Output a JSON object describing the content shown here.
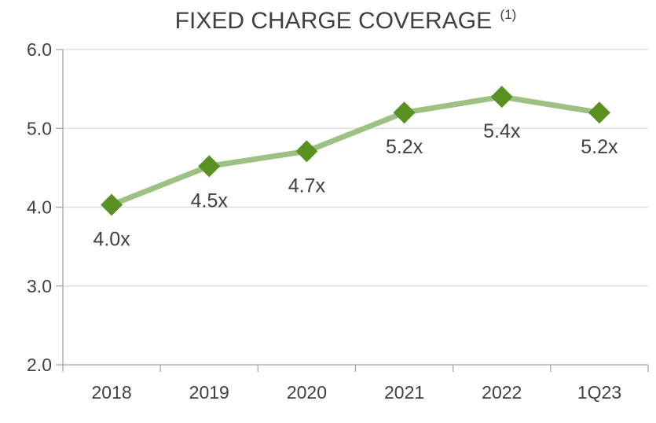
{
  "chart_data": {
    "type": "line",
    "title": "FIXED CHARGE COVERAGE",
    "title_superscript": "(1)",
    "categories": [
      "2018",
      "2019",
      "2020",
      "2021",
      "2022",
      "1Q23"
    ],
    "series": [
      {
        "name": "Fixed Charge Coverage",
        "values": [
          4.03,
          4.52,
          4.71,
          5.2,
          5.4,
          5.2
        ],
        "data_labels": [
          "4.0x",
          "4.5x",
          "4.7x",
          "5.2x",
          "5.4x",
          "5.2x"
        ],
        "line_color": "#9dc183",
        "marker_color": "#5a9123",
        "marker": "diamond"
      }
    ],
    "y_ticks": [
      "2.0",
      "3.0",
      "4.0",
      "5.0",
      "6.0"
    ],
    "ylim": [
      2.0,
      6.0
    ],
    "xlabel": "",
    "ylabel": "",
    "grid": true,
    "legend": "none"
  }
}
